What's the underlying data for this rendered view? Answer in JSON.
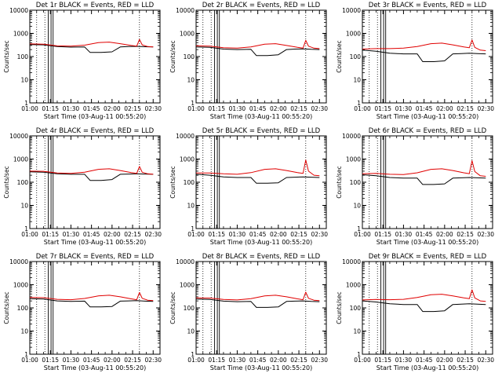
{
  "chart_data": {
    "type": "line",
    "layout": "3x3 grid",
    "series_legend": {
      "black": "Events",
      "red": "LLD"
    },
    "colors": {
      "events": "#000000",
      "lld": "#e00000",
      "axes": "#000000",
      "background": "#ffffff"
    },
    "y_scale": "log",
    "ylim": [
      1,
      10000
    ],
    "xlim_minutes": [
      0,
      95
    ],
    "x_tick_labels": [
      "01:00",
      "01:15",
      "01:30",
      "01:45",
      "02:00",
      "02:15",
      "02:30"
    ],
    "x_tick_minutes": [
      0,
      15,
      30,
      45,
      60,
      75,
      90
    ],
    "y_tick_labels": [
      "1",
      "10",
      "100",
      "1000",
      "10000"
    ],
    "y_tick_values": [
      1,
      10,
      100,
      1000,
      10000
    ],
    "xlabel": "Start Time (03-Aug-11 00:55:20)",
    "ylabel": "Counts/sec",
    "events_series": [
      {
        "name": "Events",
        "x": [
          0,
          10,
          20,
          30,
          40,
          44,
          52,
          60,
          66,
          72,
          78,
          84,
          90
        ],
        "y": [
          330,
          320,
          270,
          255,
          260,
          150,
          150,
          160,
          260,
          270,
          275,
          265,
          260
        ]
      },
      {
        "name": "Events",
        "x": [
          0,
          10,
          20,
          30,
          40,
          44,
          52,
          60,
          66,
          72,
          78,
          84,
          90
        ],
        "y": [
          260,
          250,
          210,
          200,
          205,
          110,
          110,
          120,
          200,
          210,
          215,
          205,
          200
        ]
      },
      {
        "name": "Events",
        "x": [
          0,
          10,
          20,
          30,
          40,
          44,
          52,
          60,
          66,
          72,
          78,
          84,
          90
        ],
        "y": [
          190,
          170,
          140,
          130,
          130,
          60,
          60,
          65,
          130,
          135,
          140,
          135,
          130
        ]
      },
      {
        "name": "Events",
        "x": [
          0,
          10,
          20,
          30,
          40,
          44,
          52,
          60,
          66,
          72,
          78,
          84,
          90
        ],
        "y": [
          280,
          270,
          230,
          220,
          220,
          120,
          120,
          130,
          220,
          225,
          230,
          225,
          220
        ]
      },
      {
        "name": "Events",
        "x": [
          0,
          10,
          20,
          30,
          40,
          44,
          52,
          60,
          66,
          72,
          78,
          84,
          90
        ],
        "y": [
          220,
          200,
          170,
          160,
          160,
          90,
          90,
          95,
          160,
          165,
          170,
          165,
          160
        ]
      },
      {
        "name": "Events",
        "x": [
          0,
          10,
          20,
          30,
          40,
          44,
          52,
          60,
          66,
          72,
          78,
          84,
          90
        ],
        "y": [
          210,
          190,
          160,
          150,
          150,
          80,
          80,
          85,
          150,
          155,
          160,
          155,
          150
        ]
      },
      {
        "name": "Events",
        "x": [
          0,
          10,
          20,
          30,
          40,
          44,
          52,
          60,
          66,
          72,
          78,
          84,
          90
        ],
        "y": [
          250,
          240,
          200,
          190,
          195,
          110,
          110,
          115,
          195,
          200,
          205,
          195,
          190
        ]
      },
      {
        "name": "Events",
        "x": [
          0,
          10,
          20,
          30,
          40,
          44,
          52,
          60,
          66,
          72,
          78,
          84,
          90
        ],
        "y": [
          240,
          230,
          195,
          185,
          190,
          105,
          105,
          110,
          190,
          195,
          200,
          190,
          185
        ]
      },
      {
        "name": "Events",
        "x": [
          0,
          10,
          20,
          30,
          40,
          44,
          52,
          60,
          66,
          72,
          78,
          84,
          90
        ],
        "y": [
          200,
          180,
          150,
          140,
          140,
          70,
          70,
          75,
          140,
          145,
          150,
          145,
          140
        ]
      }
    ],
    "lld_series": [
      {
        "name": "LLD",
        "x": [
          0,
          10,
          20,
          30,
          40,
          50,
          58,
          66,
          74,
          78,
          80,
          82,
          86,
          90
        ],
        "y": [
          350,
          340,
          290,
          280,
          310,
          400,
          420,
          360,
          300,
          280,
          550,
          320,
          270,
          260
        ]
      },
      {
        "name": "LLD",
        "x": [
          0,
          10,
          20,
          30,
          40,
          50,
          58,
          66,
          74,
          78,
          80,
          82,
          86,
          90
        ],
        "y": [
          290,
          280,
          240,
          230,
          260,
          340,
          360,
          300,
          250,
          230,
          500,
          280,
          230,
          220
        ]
      },
      {
        "name": "LLD",
        "x": [
          0,
          10,
          20,
          30,
          40,
          50,
          58,
          66,
          74,
          78,
          80,
          82,
          86,
          90
        ],
        "y": [
          210,
          220,
          220,
          230,
          270,
          360,
          380,
          320,
          260,
          240,
          520,
          250,
          190,
          180
        ]
      },
      {
        "name": "LLD",
        "x": [
          0,
          10,
          20,
          30,
          40,
          50,
          58,
          66,
          74,
          78,
          80,
          82,
          86,
          90
        ],
        "y": [
          300,
          295,
          250,
          240,
          270,
          360,
          380,
          320,
          260,
          240,
          480,
          270,
          230,
          220
        ]
      },
      {
        "name": "LLD",
        "x": [
          0,
          10,
          20,
          30,
          40,
          50,
          58,
          66,
          74,
          78,
          80,
          82,
          86,
          90
        ],
        "y": [
          250,
          250,
          230,
          220,
          260,
          360,
          380,
          320,
          260,
          240,
          900,
          300,
          200,
          190
        ]
      },
      {
        "name": "LLD",
        "x": [
          0,
          10,
          20,
          30,
          40,
          50,
          58,
          66,
          74,
          78,
          80,
          82,
          86,
          90
        ],
        "y": [
          230,
          240,
          220,
          215,
          255,
          360,
          380,
          320,
          255,
          235,
          850,
          290,
          190,
          180
        ]
      },
      {
        "name": "LLD",
        "x": [
          0,
          10,
          20,
          30,
          40,
          50,
          58,
          66,
          74,
          78,
          80,
          82,
          86,
          90
        ],
        "y": [
          280,
          275,
          235,
          225,
          255,
          330,
          350,
          300,
          245,
          225,
          460,
          260,
          215,
          205
        ]
      },
      {
        "name": "LLD",
        "x": [
          0,
          10,
          20,
          30,
          40,
          50,
          58,
          66,
          74,
          78,
          80,
          82,
          86,
          90
        ],
        "y": [
          270,
          265,
          230,
          220,
          250,
          330,
          350,
          300,
          245,
          225,
          480,
          260,
          215,
          205
        ]
      },
      {
        "name": "LLD",
        "x": [
          0,
          10,
          20,
          30,
          40,
          50,
          58,
          66,
          74,
          78,
          80,
          82,
          86,
          90
        ],
        "y": [
          220,
          230,
          225,
          235,
          280,
          370,
          390,
          330,
          270,
          250,
          600,
          270,
          200,
          190
        ]
      }
    ],
    "marker_lines": {
      "dotted_minutes": [
        5,
        11,
        80
      ],
      "solid_minutes": [
        13.5,
        15.5,
        17
      ]
    },
    "panels": [
      {
        "title": "Det 1r BLACK = Events, RED = LLD"
      },
      {
        "title": "Det 2r BLACK = Events, RED = LLD"
      },
      {
        "title": "Det 3r BLACK = Events, RED = LLD"
      },
      {
        "title": "Det 4r BLACK = Events, RED = LLD"
      },
      {
        "title": "Det 5r BLACK = Events, RED = LLD"
      },
      {
        "title": "Det 6r BLACK = Events, RED = LLD"
      },
      {
        "title": "Det 7r BLACK = Events, RED = LLD"
      },
      {
        "title": "Det 8r BLACK = Events, RED = LLD"
      },
      {
        "title": "Det 9r BLACK = Events, RED = LLD"
      }
    ]
  }
}
